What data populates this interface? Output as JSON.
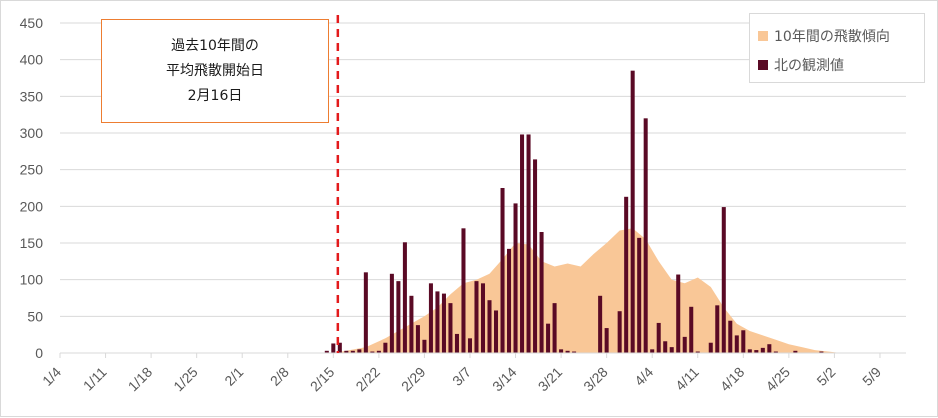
{
  "chart_data": {
    "type": "bar",
    "annotation": {
      "lines": [
        "過去10年間の",
        "平均飛散開始日",
        "2月16日"
      ],
      "marker_date": "2/16"
    },
    "x_tick_labels": [
      "1/4",
      "1/11",
      "1/18",
      "1/25",
      "2/1",
      "2/8",
      "2/15",
      "2/22",
      "2/29",
      "3/7",
      "3/14",
      "3/21",
      "3/28",
      "4/4",
      "4/11",
      "4/18",
      "4/25",
      "5/2",
      "5/9"
    ],
    "y_ticks": [
      0,
      50,
      100,
      150,
      200,
      250,
      300,
      350,
      400,
      450
    ],
    "ylim": [
      0,
      450
    ],
    "grid": true,
    "legend_position": "top-right",
    "series": [
      {
        "name": "10年間の飛散傾向",
        "type": "area",
        "color": "#f9c797",
        "points": [
          [
            "2/15",
            0
          ],
          [
            "2/17",
            3
          ],
          [
            "2/20",
            8
          ],
          [
            "2/23",
            20
          ],
          [
            "2/26",
            35
          ],
          [
            "2/29",
            50
          ],
          [
            "3/2",
            62
          ],
          [
            "3/4",
            80
          ],
          [
            "3/6",
            95
          ],
          [
            "3/8",
            100
          ],
          [
            "3/10",
            108
          ],
          [
            "3/12",
            128
          ],
          [
            "3/14",
            150
          ],
          [
            "3/16",
            148
          ],
          [
            "3/18",
            125
          ],
          [
            "3/20",
            118
          ],
          [
            "3/22",
            122
          ],
          [
            "3/24",
            118
          ],
          [
            "3/26",
            135
          ],
          [
            "3/28",
            150
          ],
          [
            "3/30",
            167
          ],
          [
            "4/1",
            170
          ],
          [
            "4/3",
            155
          ],
          [
            "4/5",
            125
          ],
          [
            "4/7",
            100
          ],
          [
            "4/9",
            95
          ],
          [
            "4/11",
            103
          ],
          [
            "4/13",
            90
          ],
          [
            "4/15",
            62
          ],
          [
            "4/17",
            40
          ],
          [
            "4/19",
            30
          ],
          [
            "4/21",
            24
          ],
          [
            "4/23",
            18
          ],
          [
            "4/25",
            12
          ],
          [
            "4/27",
            8
          ],
          [
            "4/29",
            4
          ],
          [
            "5/1",
            2
          ],
          [
            "5/3",
            0
          ]
        ]
      },
      {
        "name": "北の観測値",
        "type": "bar",
        "color": "#5a0a25",
        "points": [
          [
            "2/14",
            3
          ],
          [
            "2/15",
            13
          ],
          [
            "2/16",
            14
          ],
          [
            "2/17",
            3
          ],
          [
            "2/18",
            3
          ],
          [
            "2/19",
            5
          ],
          [
            "2/20",
            110
          ],
          [
            "2/21",
            2
          ],
          [
            "2/22",
            3
          ],
          [
            "2/23",
            14
          ],
          [
            "2/24",
            108
          ],
          [
            "2/25",
            98
          ],
          [
            "2/26",
            151
          ],
          [
            "2/27",
            78
          ],
          [
            "2/28",
            38
          ],
          [
            "2/29",
            18
          ],
          [
            "3/1",
            95
          ],
          [
            "3/2",
            84
          ],
          [
            "3/3",
            81
          ],
          [
            "3/4",
            68
          ],
          [
            "3/5",
            26
          ],
          [
            "3/6",
            170
          ],
          [
            "3/7",
            20
          ],
          [
            "3/8",
            98
          ],
          [
            "3/9",
            95
          ],
          [
            "3/10",
            72
          ],
          [
            "3/11",
            58
          ],
          [
            "3/12",
            225
          ],
          [
            "3/13",
            142
          ],
          [
            "3/14",
            204
          ],
          [
            "3/15",
            298
          ],
          [
            "3/16",
            298
          ],
          [
            "3/17",
            264
          ],
          [
            "3/18",
            165
          ],
          [
            "3/19",
            40
          ],
          [
            "3/20",
            68
          ],
          [
            "3/21",
            5
          ],
          [
            "3/22",
            3
          ],
          [
            "3/23",
            2
          ],
          [
            "3/27",
            78
          ],
          [
            "3/28",
            34
          ],
          [
            "3/30",
            57
          ],
          [
            "3/31",
            213
          ],
          [
            "4/1",
            385
          ],
          [
            "4/2",
            157
          ],
          [
            "4/3",
            320
          ],
          [
            "4/4",
            5
          ],
          [
            "4/5",
            41
          ],
          [
            "4/6",
            16
          ],
          [
            "4/7",
            8
          ],
          [
            "4/8",
            107
          ],
          [
            "4/9",
            22
          ],
          [
            "4/10",
            63
          ],
          [
            "4/11",
            2
          ],
          [
            "4/13",
            14
          ],
          [
            "4/14",
            65
          ],
          [
            "4/15",
            199
          ],
          [
            "4/16",
            44
          ],
          [
            "4/17",
            24
          ],
          [
            "4/18",
            31
          ],
          [
            "4/19",
            5
          ],
          [
            "4/20",
            4
          ],
          [
            "4/21",
            7
          ],
          [
            "4/22",
            12
          ],
          [
            "4/23",
            2
          ],
          [
            "4/26",
            3
          ],
          [
            "4/30",
            2
          ]
        ]
      }
    ]
  }
}
